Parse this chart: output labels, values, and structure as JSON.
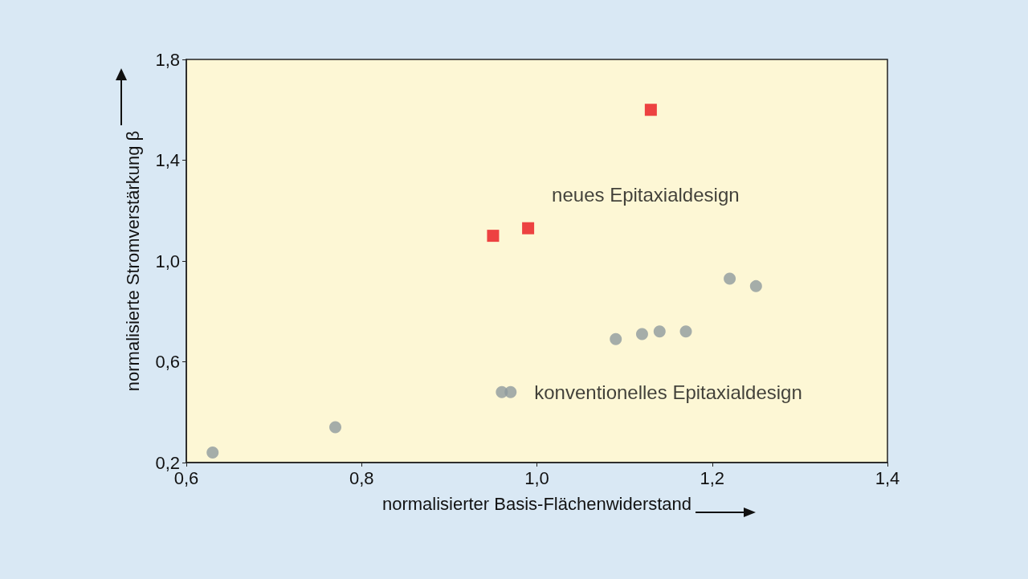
{
  "chart_data": {
    "type": "scatter",
    "xlabel": "normalisierter Basis-Flächenwiderstand",
    "ylabel": "normalisierte Stromverstärkung β",
    "xlim": [
      0.6,
      1.4
    ],
    "xticks": [
      {
        "value": 0.6,
        "label": "0,6"
      },
      {
        "value": 0.8,
        "label": "0,8"
      },
      {
        "value": 1.0,
        "label": "1,0"
      },
      {
        "value": 1.2,
        "label": "1,2"
      },
      {
        "value": 1.4,
        "label": "1,4"
      }
    ],
    "ylim": [
      0.2,
      1.8
    ],
    "yticks": [
      {
        "value": 0.2,
        "label": "0,2"
      },
      {
        "value": 0.6,
        "label": "0,6"
      },
      {
        "value": 1.0,
        "label": "1,0"
      },
      {
        "value": 1.4,
        "label": "1,4"
      },
      {
        "value": 1.8,
        "label": "1,8"
      }
    ],
    "series": [
      {
        "name": "neues Epitaxialdesign",
        "color": "#e8141c",
        "marker": "square",
        "x": [
          0.95,
          0.99,
          1.13
        ],
        "values": [
          1.1,
          1.13,
          1.6
        ]
      },
      {
        "name": "konventionelles Epitaxialdesign",
        "color": "#8e9a9e",
        "marker": "circle",
        "x": [
          0.63,
          0.77,
          0.96,
          0.97,
          1.09,
          1.12,
          1.14,
          1.17,
          1.22,
          1.25
        ],
        "values": [
          0.24,
          0.34,
          0.48,
          0.48,
          0.69,
          0.71,
          0.72,
          0.72,
          0.93,
          0.9
        ]
      }
    ],
    "grid": false
  }
}
